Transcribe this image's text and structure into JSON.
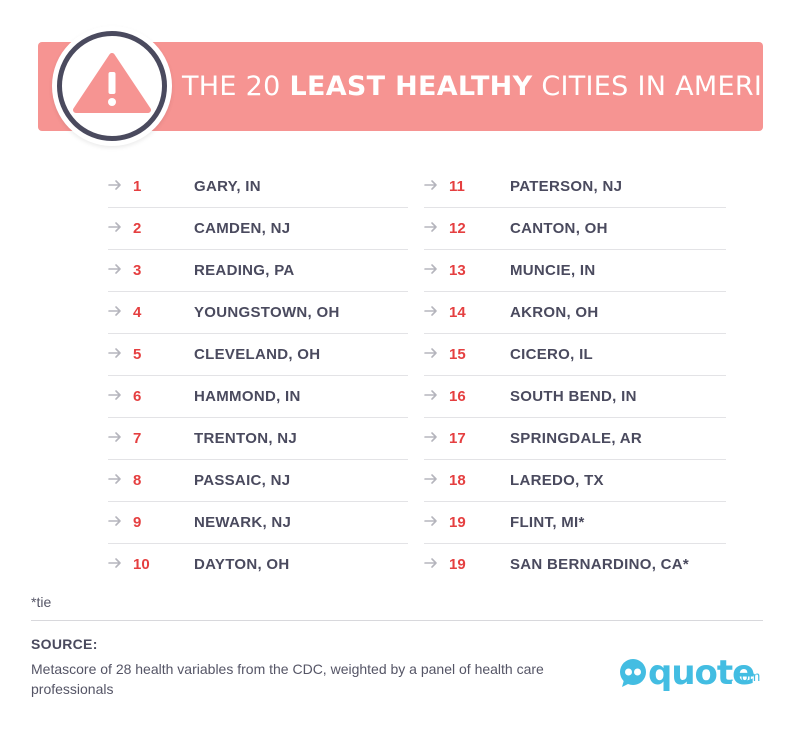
{
  "header": {
    "title_pre": "THE 20 ",
    "title_bold": "LEAST HEALTHY",
    "title_post": " CITIES IN AMERICA",
    "icon": "warning-icon"
  },
  "colors": {
    "banner": "#f69492",
    "rank": "#e53f40",
    "text": "#4a4a5e",
    "logo": "#43bde2"
  },
  "left_column": [
    {
      "rank": "1",
      "city": "GARY, IN"
    },
    {
      "rank": "2",
      "city": "CAMDEN, NJ"
    },
    {
      "rank": "3",
      "city": "READING, PA"
    },
    {
      "rank": "4",
      "city": "YOUNGSTOWN, OH"
    },
    {
      "rank": "5",
      "city": "CLEVELAND, OH"
    },
    {
      "rank": "6",
      "city": "HAMMOND, IN"
    },
    {
      "rank": "7",
      "city": "TRENTON, NJ"
    },
    {
      "rank": "8",
      "city": "PASSAIC, NJ"
    },
    {
      "rank": "9",
      "city": "NEWARK, NJ"
    },
    {
      "rank": "10",
      "city": "DAYTON, OH"
    }
  ],
  "right_column": [
    {
      "rank": "11",
      "city": "PATERSON, NJ"
    },
    {
      "rank": "12",
      "city": "CANTON, OH"
    },
    {
      "rank": "13",
      "city": "MUNCIE, IN"
    },
    {
      "rank": "14",
      "city": "AKRON, OH"
    },
    {
      "rank": "15",
      "city": "CICERO, IL"
    },
    {
      "rank": "16",
      "city": "SOUTH BEND, IN"
    },
    {
      "rank": "17",
      "city": "SPRINGDALE, AR"
    },
    {
      "rank": "18",
      "city": "LAREDO, TX"
    },
    {
      "rank": "19",
      "city": "FLINT, MI*"
    },
    {
      "rank": "19",
      "city": "SAN BERNARDINO, CA*"
    }
  ],
  "footer": {
    "footnote": "*tie",
    "source_label": "SOURCE:",
    "source_text": "Metascore of 28 health variables from the CDC, weighted by a panel of health care professionals",
    "logo_word": "quote",
    "logo_tld": ".com"
  }
}
